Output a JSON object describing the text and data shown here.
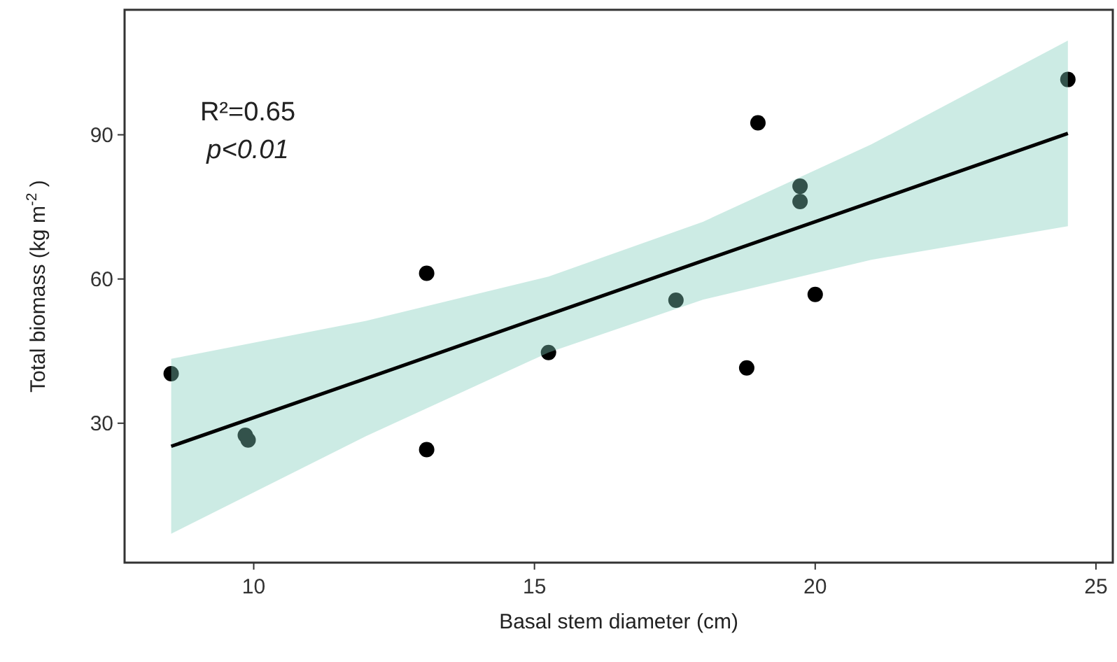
{
  "chart_data": {
    "type": "scatter",
    "xlabel": "Basal stem diameter (cm)",
    "ylabel": "Total biomass (kg m$^{-2}$ )",
    "annotations": [
      "R²=0.65",
      "p<0.01"
    ],
    "xlim": [
      7.7,
      25.3
    ],
    "xticks": [
      10,
      15,
      20,
      25
    ],
    "ylim": [
      1,
      116
    ],
    "yticks": [
      30,
      60,
      90
    ],
    "grid": false,
    "series": [
      {
        "marker": "circle",
        "color": "#000000",
        "x": [
          8.53,
          9.85,
          9.9,
          13.08,
          13.08,
          15.25,
          17.52,
          18.78,
          18.98,
          19.73,
          19.73,
          20.0,
          24.5
        ],
        "values": [
          40.3,
          27.5,
          26.5,
          61.2,
          24.5,
          44.7,
          55.6,
          41.5,
          92.5,
          79.3,
          76.1,
          56.8,
          101.5
        ]
      },
      {
        "type": "line",
        "color": "#000000",
        "x": [
          8.53,
          12,
          15.25,
          18,
          21,
          24.5
        ],
        "values": [
          25.2,
          39.3,
          52.6,
          63.8,
          76.0,
          90.3
        ],
        "lower": [
          7.0,
          27.3,
          44.7,
          55.7,
          64.0,
          71.0
        ],
        "upper": [
          43.4,
          51.3,
          60.5,
          71.9,
          88.0,
          109.6
        ]
      }
    ]
  }
}
